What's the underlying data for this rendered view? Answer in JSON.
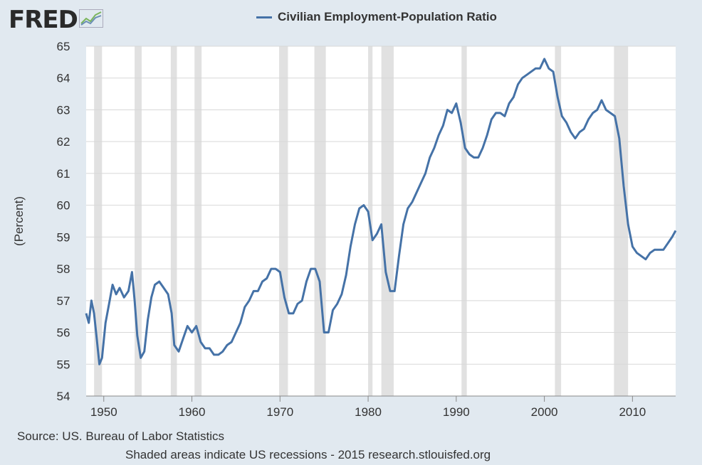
{
  "logo": {
    "text": "FRED"
  },
  "legend": {
    "label": "Civilian Employment-Population Ratio",
    "color": "#4572a7"
  },
  "source": "Source: US. Bureau of Labor Statistics",
  "note": "Shaded areas indicate US recessions - 2015 research.stlouisfed.org",
  "chart_data": {
    "type": "line",
    "title": "",
    "xlabel": "",
    "ylabel": "(Percent)",
    "ylim": [
      54,
      65
    ],
    "xlim": [
      1948,
      2014.9
    ],
    "grid": true,
    "legend_position": "top",
    "x_ticks": [
      1950,
      1960,
      1970,
      1980,
      1990,
      2000,
      2010
    ],
    "y_ticks": [
      54,
      55,
      56,
      57,
      58,
      59,
      60,
      61,
      62,
      63,
      64,
      65
    ],
    "recessions": [
      [
        1948.9,
        1949.8
      ],
      [
        1953.5,
        1954.3
      ],
      [
        1957.6,
        1958.3
      ],
      [
        1960.3,
        1961.1
      ],
      [
        1969.9,
        1970.9
      ],
      [
        1973.9,
        1975.2
      ],
      [
        1980.0,
        1980.5
      ],
      [
        1981.5,
        1982.9
      ],
      [
        1990.6,
        1991.2
      ],
      [
        2001.2,
        2001.9
      ],
      [
        2007.9,
        2009.5
      ]
    ],
    "series": [
      {
        "name": "Civilian Employment-Population Ratio",
        "color": "#4572a7",
        "x": [
          1948.0,
          1948.3,
          1948.6,
          1948.9,
          1949.2,
          1949.5,
          1949.8,
          1950.2,
          1950.6,
          1951.0,
          1951.4,
          1951.8,
          1952.3,
          1952.8,
          1953.2,
          1953.5,
          1953.8,
          1954.2,
          1954.6,
          1955.0,
          1955.4,
          1955.8,
          1956.3,
          1956.8,
          1957.3,
          1957.7,
          1958.0,
          1958.5,
          1959.0,
          1959.5,
          1960.0,
          1960.5,
          1961.0,
          1961.5,
          1962.0,
          1962.5,
          1963.0,
          1963.5,
          1964.0,
          1964.5,
          1965.0,
          1965.5,
          1966.0,
          1966.5,
          1967.0,
          1967.5,
          1968.0,
          1968.5,
          1969.0,
          1969.5,
          1970.0,
          1970.5,
          1971.0,
          1971.5,
          1972.0,
          1972.5,
          1973.0,
          1973.5,
          1974.0,
          1974.5,
          1975.0,
          1975.5,
          1976.0,
          1976.5,
          1977.0,
          1977.5,
          1978.0,
          1978.5,
          1979.0,
          1979.5,
          1980.0,
          1980.5,
          1981.0,
          1981.5,
          1982.0,
          1982.5,
          1983.0,
          1983.5,
          1984.0,
          1984.5,
          1985.0,
          1985.5,
          1986.0,
          1986.5,
          1987.0,
          1987.5,
          1988.0,
          1988.5,
          1989.0,
          1989.5,
          1990.0,
          1990.5,
          1991.0,
          1991.5,
          1992.0,
          1992.5,
          1993.0,
          1993.5,
          1994.0,
          1994.5,
          1995.0,
          1995.5,
          1996.0,
          1996.5,
          1997.0,
          1997.5,
          1998.0,
          1998.5,
          1999.0,
          1999.5,
          2000.0,
          2000.5,
          2001.0,
          2001.5,
          2002.0,
          2002.5,
          2003.0,
          2003.5,
          2004.0,
          2004.5,
          2005.0,
          2005.5,
          2006.0,
          2006.5,
          2007.0,
          2007.5,
          2008.0,
          2008.5,
          2009.0,
          2009.5,
          2010.0,
          2010.5,
          2011.0,
          2011.5,
          2012.0,
          2012.5,
          2013.0,
          2013.5,
          2014.0,
          2014.5,
          2014.9
        ],
        "values": [
          56.6,
          56.3,
          57.0,
          56.6,
          55.8,
          55.0,
          55.2,
          56.3,
          56.9,
          57.5,
          57.2,
          57.4,
          57.1,
          57.3,
          57.9,
          57.0,
          55.9,
          55.2,
          55.4,
          56.4,
          57.1,
          57.5,
          57.6,
          57.4,
          57.2,
          56.6,
          55.6,
          55.4,
          55.8,
          56.2,
          56.0,
          56.2,
          55.7,
          55.5,
          55.5,
          55.3,
          55.3,
          55.4,
          55.6,
          55.7,
          56.0,
          56.3,
          56.8,
          57.0,
          57.3,
          57.3,
          57.6,
          57.7,
          58.0,
          58.0,
          57.9,
          57.1,
          56.6,
          56.6,
          56.9,
          57.0,
          57.6,
          58.0,
          58.0,
          57.6,
          56.0,
          56.0,
          56.7,
          56.9,
          57.2,
          57.8,
          58.7,
          59.4,
          59.9,
          60.0,
          59.8,
          58.9,
          59.1,
          59.4,
          57.9,
          57.3,
          57.3,
          58.4,
          59.4,
          59.9,
          60.1,
          60.4,
          60.7,
          61.0,
          61.5,
          61.8,
          62.2,
          62.5,
          63.0,
          62.9,
          63.2,
          62.6,
          61.8,
          61.6,
          61.5,
          61.5,
          61.8,
          62.2,
          62.7,
          62.9,
          62.9,
          62.8,
          63.2,
          63.4,
          63.8,
          64.0,
          64.1,
          64.2,
          64.3,
          64.3,
          64.6,
          64.3,
          64.2,
          63.4,
          62.8,
          62.6,
          62.3,
          62.1,
          62.3,
          62.4,
          62.7,
          62.9,
          63.0,
          63.3,
          63.0,
          62.9,
          62.8,
          62.1,
          60.6,
          59.4,
          58.7,
          58.5,
          58.4,
          58.3,
          58.5,
          58.6,
          58.6,
          58.6,
          58.8,
          59.0,
          59.2
        ]
      }
    ]
  }
}
